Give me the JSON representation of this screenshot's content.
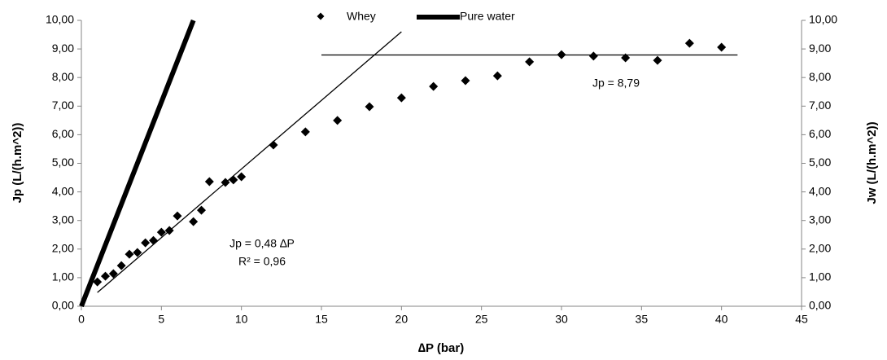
{
  "chart_data": {
    "type": "scatter",
    "xlabel": "∆P (bar)",
    "ylabel": "Jp (L/(h.m^2))",
    "y2label": "Jw (L/(h.m^2))",
    "xlim": [
      0,
      45
    ],
    "xticks": [
      0,
      5,
      10,
      15,
      20,
      25,
      30,
      35,
      40,
      45
    ],
    "ylim": [
      0,
      10
    ],
    "yticks": [
      {
        "value": 0,
        "label": "0,00"
      },
      {
        "value": 1,
        "label": "1,00"
      },
      {
        "value": 2,
        "label": "2,00"
      },
      {
        "value": 3,
        "label": "3,00"
      },
      {
        "value": 4,
        "label": "4,00"
      },
      {
        "value": 5,
        "label": "5,00"
      },
      {
        "value": 6,
        "label": "6,00"
      },
      {
        "value": 7,
        "label": "7,00"
      },
      {
        "value": 8,
        "label": "8,00"
      },
      {
        "value": 9,
        "label": "9,00"
      },
      {
        "value": 10,
        "label": "10,00"
      }
    ],
    "y2lim": [
      0,
      10
    ],
    "y2ticks": [
      {
        "value": 0,
        "label": "0,00"
      },
      {
        "value": 1,
        "label": "1,00"
      },
      {
        "value": 2,
        "label": "2,00"
      },
      {
        "value": 3,
        "label": "3,00"
      },
      {
        "value": 4,
        "label": "4,00"
      },
      {
        "value": 5,
        "label": "5,00"
      },
      {
        "value": 6,
        "label": "6,00"
      },
      {
        "value": 7,
        "label": "7,00"
      },
      {
        "value": 8,
        "label": "8,00"
      },
      {
        "value": 9,
        "label": "9,00"
      },
      {
        "value": 10,
        "label": "10,00"
      }
    ],
    "series": [
      {
        "name": "Whey",
        "color": "#000000",
        "marker": "diamond",
        "x": [
          1,
          1.5,
          2,
          2.5,
          3,
          3.5,
          4,
          4.5,
          5,
          5.5,
          6,
          7,
          7.5,
          8,
          9,
          9.5,
          10,
          12,
          14,
          16,
          18,
          20,
          22,
          24,
          26,
          28,
          30,
          32,
          34,
          36,
          38,
          40
        ],
        "values": [
          0.85,
          1.05,
          1.14,
          1.42,
          1.82,
          1.88,
          2.22,
          2.3,
          2.59,
          2.65,
          3.16,
          2.96,
          3.36,
          4.36,
          4.33,
          4.42,
          4.53,
          5.64,
          6.1,
          6.5,
          6.98,
          7.29,
          7.69,
          7.89,
          8.06,
          8.55,
          8.8,
          8.75,
          8.69,
          8.6,
          9.2,
          9.06
        ]
      },
      {
        "name": "Pure water",
        "color": "#000000",
        "marker": "line",
        "axis": "y2",
        "x": [
          0,
          7
        ],
        "values": [
          0,
          10
        ]
      }
    ],
    "trendlines": [
      {
        "color": "#000000",
        "x": [
          1,
          20
        ],
        "values": [
          0.48,
          9.6
        ]
      },
      {
        "color": "#000000",
        "x": [
          15,
          41
        ],
        "values": [
          8.79,
          8.79
        ]
      }
    ],
    "annotations": [
      "Jp = 0,48 ∆P",
      "R² = 0,96",
      "Jp = 8,79"
    ]
  }
}
